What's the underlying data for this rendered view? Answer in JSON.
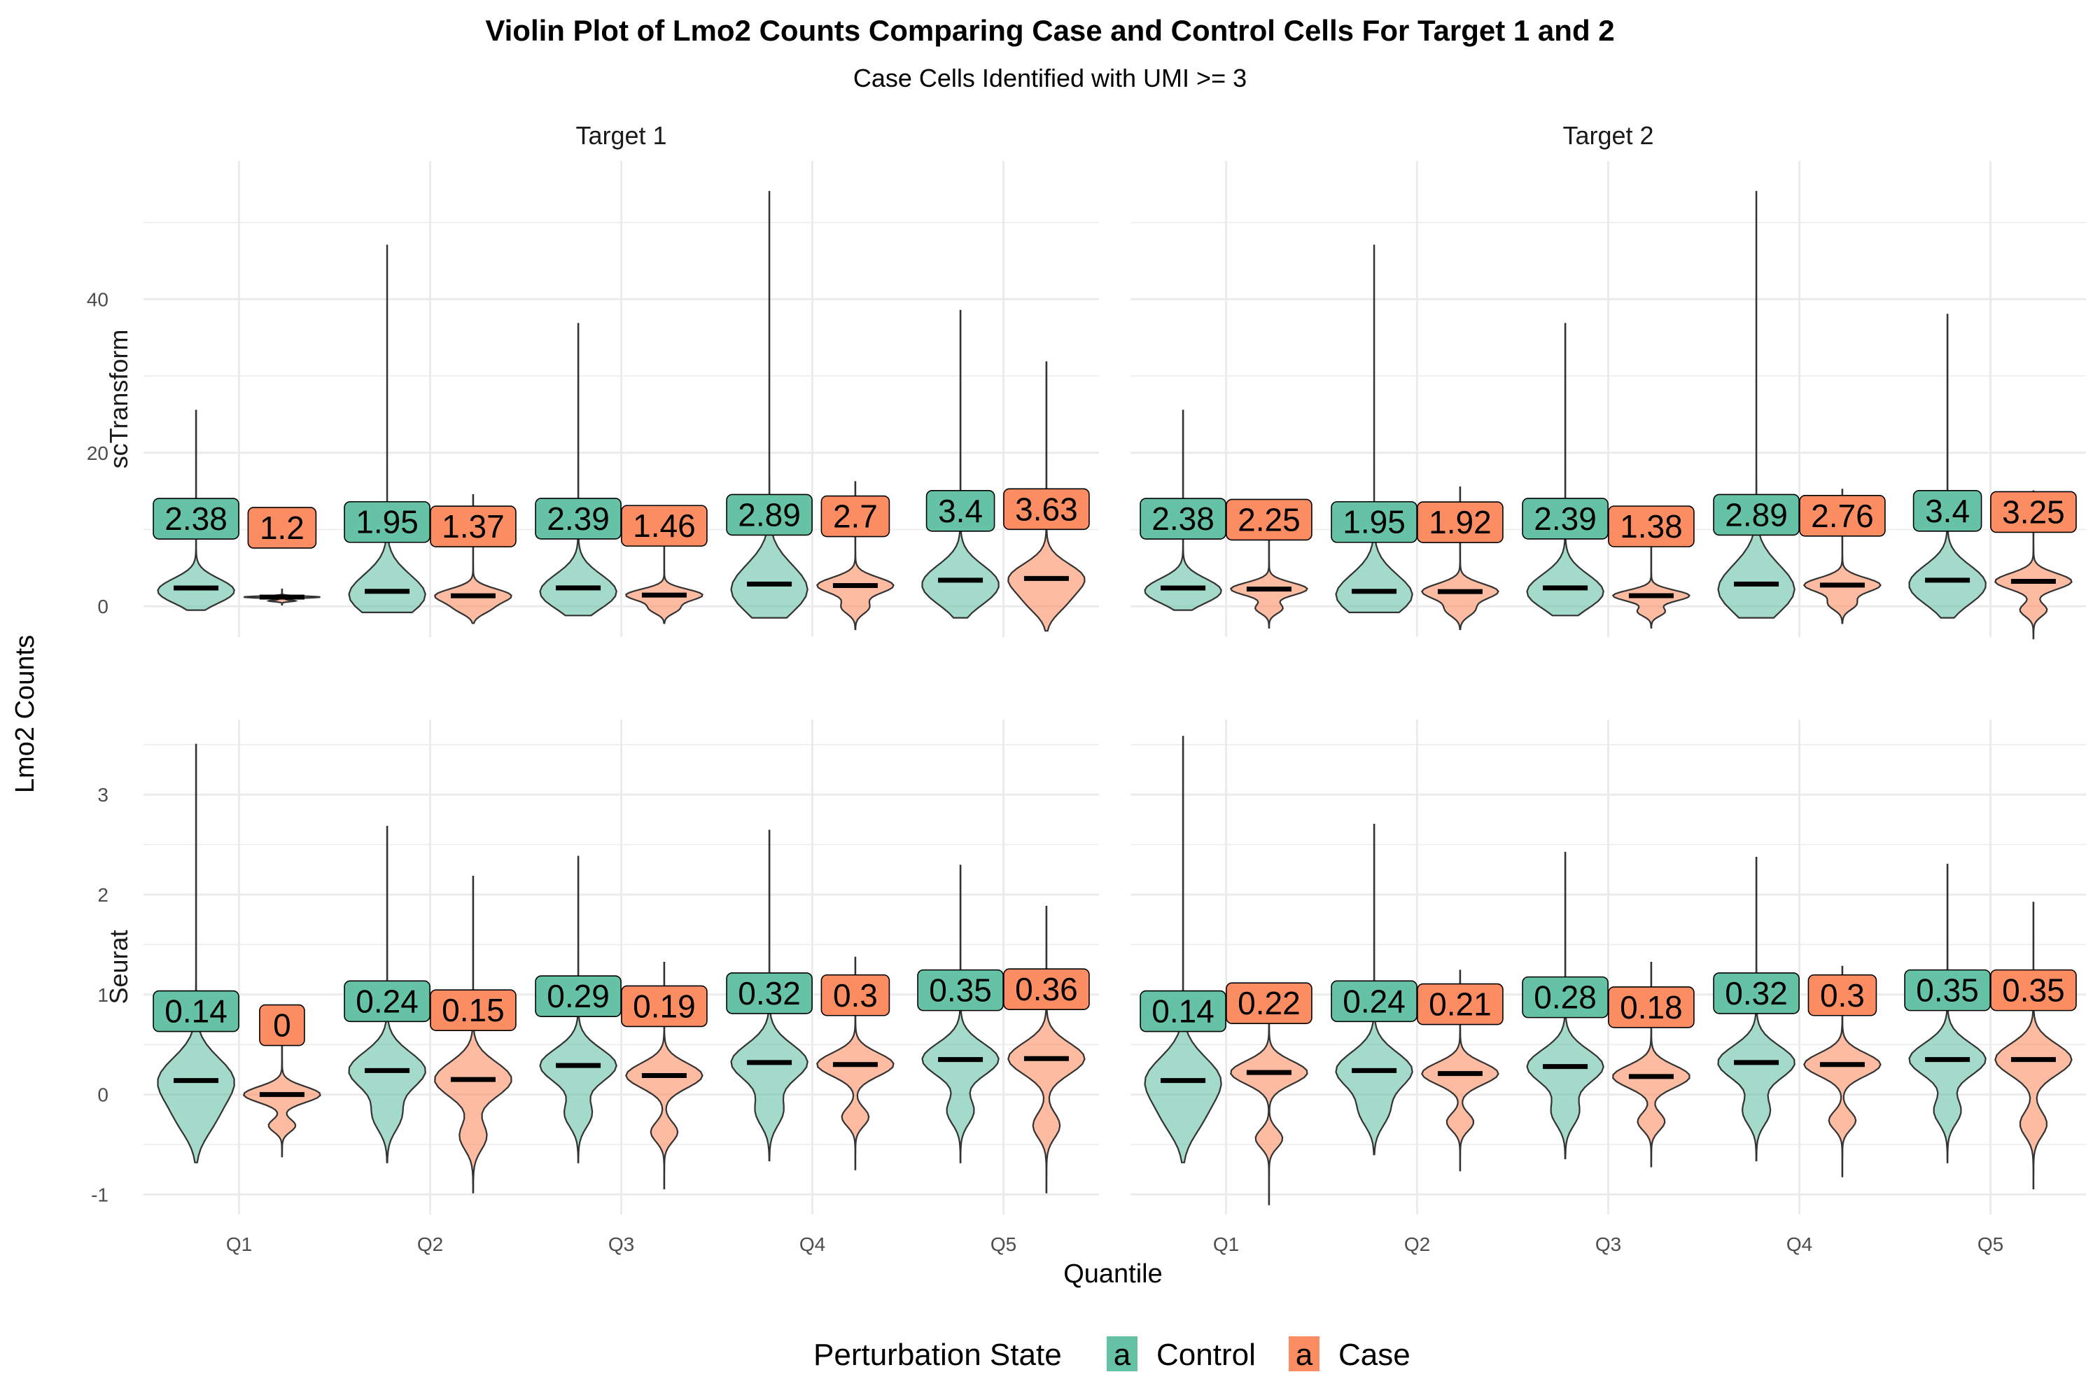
{
  "chart_data": {
    "type": "violin",
    "title": "Violin Plot of Lmo2 Counts Comparing Case and Control Cells For Target 1 and 2",
    "subtitle": "Case Cells Identified with UMI >= 3",
    "xlabel": "Quantile",
    "ylabel": "Lmo2 Counts",
    "categories": [
      "Q1",
      "Q2",
      "Q3",
      "Q4",
      "Q5"
    ],
    "columns": [
      "Target 1",
      "Target 2"
    ],
    "rows": [
      {
        "name": "scTransform",
        "ylim": [
          -4,
          58
        ],
        "yticks": [
          0,
          20,
          40
        ],
        "ytick_labels": [
          "0",
          "20",
          "40"
        ]
      },
      {
        "name": "Seurat",
        "ylim": [
          -1.2,
          3.75
        ],
        "yticks": [
          -1,
          0,
          1,
          2,
          3
        ],
        "ytick_labels": [
          "-1",
          "0",
          "1",
          "2",
          "3"
        ]
      }
    ],
    "legend": {
      "title": "Perturbation State",
      "position": "bottom",
      "key_glyph": "a",
      "entries": [
        {
          "name": "Control",
          "color": "#66c2a5"
        },
        {
          "name": "Case",
          "color": "#fc8d62"
        }
      ]
    },
    "grid": true,
    "panels": [
      {
        "row": "scTransform",
        "column": "Target 1",
        "series": [
          {
            "name": "Control",
            "means": [
              2.38,
              1.95,
              2.39,
              2.89,
              3.4
            ],
            "labels": [
              "2.38",
              "1.95",
              "2.39",
              "2.89",
              "3.4"
            ],
            "min": [
              -0.5,
              -0.8,
              -1.2,
              -1.5,
              -1.5
            ],
            "max": [
              25.5,
              47.0,
              36.8,
              54.0,
              38.5
            ]
          },
          {
            "name": "Case",
            "means": [
              1.2,
              1.37,
              1.46,
              2.7,
              3.63
            ],
            "labels": [
              "1.2",
              "1.37",
              "1.46",
              "2.7",
              "3.63"
            ],
            "min": [
              0.2,
              -2.2,
              -2.2,
              -3.0,
              -3.2
            ],
            "max": [
              2.2,
              14.5,
              11.8,
              16.2,
              31.8
            ]
          }
        ]
      },
      {
        "row": "scTransform",
        "column": "Target 2",
        "series": [
          {
            "name": "Control",
            "means": [
              2.38,
              1.95,
              2.39,
              2.89,
              3.4
            ],
            "labels": [
              "2.38",
              "1.95",
              "2.39",
              "2.89",
              "3.4"
            ],
            "min": [
              -0.5,
              -0.8,
              -1.2,
              -1.5,
              -1.5
            ],
            "max": [
              25.5,
              47.0,
              36.8,
              54.0,
              38.0
            ]
          },
          {
            "name": "Case",
            "means": [
              2.25,
              1.92,
              1.38,
              2.76,
              3.25
            ],
            "labels": [
              "2.25",
              "1.92",
              "1.38",
              "2.76",
              "3.25"
            ],
            "min": [
              -2.8,
              -3.0,
              -2.8,
              -2.2,
              -4.2
            ],
            "max": [
              12.5,
              15.5,
              10.5,
              15.2,
              15.0
            ]
          }
        ]
      },
      {
        "row": "Seurat",
        "column": "Target 1",
        "series": [
          {
            "name": "Control",
            "means": [
              0.14,
              0.24,
              0.29,
              0.32,
              0.35
            ],
            "labels": [
              "0.14",
              "0.24",
              "0.29",
              "0.32",
              "0.35"
            ],
            "min": [
              -0.68,
              -0.68,
              -0.68,
              -0.66,
              -0.68
            ],
            "max": [
              3.5,
              2.68,
              2.38,
              2.64,
              2.29
            ]
          },
          {
            "name": "Case",
            "means": [
              0.0,
              0.15,
              0.19,
              0.3,
              0.36
            ],
            "labels": [
              "0",
              "0.15",
              "0.19",
              "0.3",
              "0.36"
            ],
            "min": [
              -0.62,
              -0.98,
              -0.94,
              -0.75,
              -0.98
            ],
            "max": [
              0.85,
              2.18,
              1.32,
              1.37,
              1.88
            ]
          }
        ]
      },
      {
        "row": "Seurat",
        "column": "Target 2",
        "series": [
          {
            "name": "Control",
            "means": [
              0.14,
              0.24,
              0.28,
              0.32,
              0.35
            ],
            "labels": [
              "0.14",
              "0.24",
              "0.28",
              "0.32",
              "0.35"
            ],
            "min": [
              -0.68,
              -0.6,
              -0.64,
              -0.66,
              -0.68
            ],
            "max": [
              3.58,
              2.7,
              2.42,
              2.37,
              2.3
            ]
          },
          {
            "name": "Case",
            "means": [
              0.22,
              0.21,
              0.18,
              0.3,
              0.35
            ],
            "labels": [
              "0.22",
              "0.21",
              "0.18",
              "0.3",
              "0.35"
            ],
            "min": [
              -1.1,
              -0.76,
              -0.72,
              -0.82,
              -0.94
            ],
            "max": [
              1.02,
              1.24,
              1.32,
              1.28,
              1.92
            ]
          }
        ]
      }
    ]
  }
}
